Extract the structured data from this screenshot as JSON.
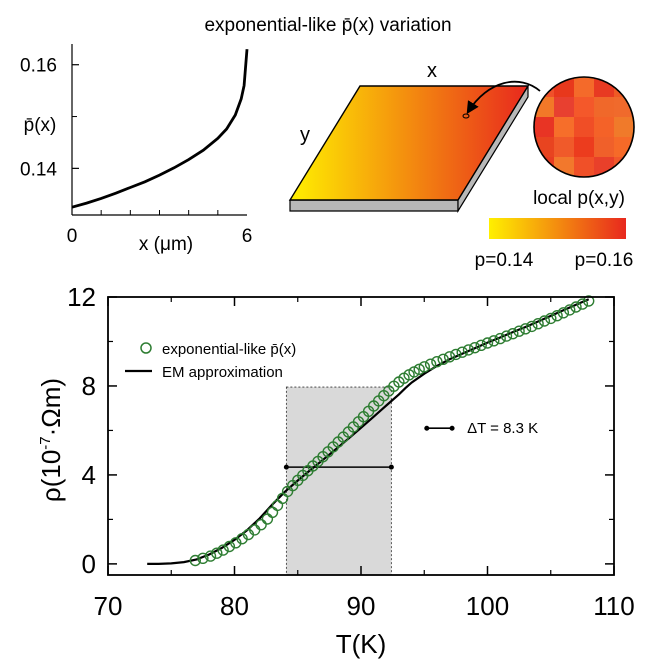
{
  "top_title": "exponential-like p̄(x) variation",
  "schematic": {
    "x_label": "x",
    "y_label": "y",
    "local_label": "local p(x,y)",
    "colorbar_min_label": "p=0.14",
    "colorbar_max_label": "p=0.16",
    "colors": {
      "low": "#fff000",
      "high": "#e8281e",
      "slab_side": "#b8b8b8",
      "inset_cells": [
        "#f0502a",
        "#e8381c",
        "#f46a2a",
        "#e83a22",
        "#f05a24",
        "#f27828",
        "#e84030",
        "#f4582a",
        "#f0682a",
        "#f06a2c",
        "#e83424",
        "#f66e2a",
        "#f04e26",
        "#f46228",
        "#f07a2a",
        "#e84420",
        "#f05a2a",
        "#ec3c1e",
        "#f0602a",
        "#f66a28",
        "#e83c22",
        "#f2782c",
        "#f05028",
        "#e9402a",
        "#f2582a"
      ]
    }
  },
  "chart_data": [
    {
      "id": "inset",
      "type": "line",
      "title": "exponential-like p̄(x) variation",
      "xlabel": "x (μm)",
      "ylabel": "p̄(x)",
      "xlim": [
        0,
        6
      ],
      "ylim": [
        0.131,
        0.164
      ],
      "xticks": [
        0,
        6
      ],
      "xtick_labels": [
        "0",
        "6"
      ],
      "yticks": [
        0.14,
        0.16
      ],
      "ytick_labels": [
        "0.14",
        "0.16"
      ],
      "grid": false,
      "series": [
        {
          "x": [
            0,
            0.5,
            1.0,
            1.5,
            2.0,
            2.5,
            3.0,
            3.5,
            4.0,
            4.5,
            5.0,
            5.3,
            5.6,
            5.8,
            5.9,
            6.0
          ],
          "y": [
            0.1325,
            0.1333,
            0.1342,
            0.1352,
            0.1363,
            0.1374,
            0.1387,
            0.1401,
            0.1417,
            0.1435,
            0.1458,
            0.1476,
            0.1503,
            0.1534,
            0.156,
            0.163
          ]
        }
      ]
    },
    {
      "id": "main",
      "type": "line",
      "xlabel": "T(K)",
      "ylabel": "ρ(10⁻⁷·Ωm)",
      "xlim": [
        70,
        110
      ],
      "ylim": [
        -0.5,
        12
      ],
      "xticks": [
        70,
        80,
        90,
        100,
        110
      ],
      "xtick_labels": [
        "70",
        "80",
        "90",
        "100",
        "110"
      ],
      "yticks": [
        0,
        4,
        8,
        12
      ],
      "ytick_labels": [
        "0",
        "4",
        "8",
        "12"
      ],
      "grid": false,
      "legend": {
        "position": "top-left",
        "entries": [
          {
            "label": "exponential-like p̄(x)",
            "marker": "open-circle",
            "color": "#2e7d32"
          },
          {
            "label": "EM approximation",
            "marker": "line",
            "color": "#000000"
          }
        ]
      },
      "shaded_band": {
        "x_from": 84.1,
        "x_to": 92.4,
        "color": "#d9d9d9"
      },
      "width_marker": {
        "x_from": 84.1,
        "x_to": 92.4,
        "y": 4.35
      },
      "annotation": {
        "text": "ΔT = 8.3 K",
        "marker_x": [
          95.2,
          97.2
        ],
        "marker_y": 6.1
      },
      "series": [
        {
          "name": "exponential-like p̄(x)",
          "style": "markers",
          "color": "#2e7d32",
          "x": [
            76.9,
            77.5,
            78.1,
            78.6,
            79.1,
            79.6,
            80.1,
            80.6,
            81.1,
            81.6,
            82.1,
            82.6,
            83.0,
            83.4,
            83.8,
            84.2,
            84.6,
            85.0,
            85.4,
            85.8,
            86.2,
            86.6,
            87.0,
            87.4,
            87.8,
            88.2,
            88.6,
            89.0,
            89.4,
            89.8,
            90.2,
            90.6,
            91.0,
            91.4,
            91.8,
            92.2,
            92.6,
            93.0,
            93.4,
            93.8,
            94.2,
            94.6,
            95.0,
            95.5,
            96.0,
            96.5,
            97.0,
            97.5,
            98.0,
            98.5,
            99.0,
            99.5,
            100.0,
            100.5,
            101.0,
            101.5,
            102.0,
            102.5,
            103.0,
            103.5,
            104.0,
            104.5,
            105.0,
            105.5,
            106.0,
            106.5,
            107.0,
            107.5,
            108.0
          ],
          "y": [
            0.15,
            0.25,
            0.35,
            0.48,
            0.62,
            0.78,
            0.95,
            1.13,
            1.32,
            1.53,
            1.76,
            2.02,
            2.32,
            2.63,
            2.95,
            3.26,
            3.52,
            3.76,
            3.98,
            4.19,
            4.4,
            4.61,
            4.82,
            5.04,
            5.26,
            5.48,
            5.7,
            5.93,
            6.16,
            6.39,
            6.62,
            6.86,
            7.1,
            7.33,
            7.56,
            7.78,
            7.99,
            8.18,
            8.35,
            8.5,
            8.63,
            8.75,
            8.86,
            8.98,
            9.09,
            9.2,
            9.31,
            9.42,
            9.52,
            9.62,
            9.72,
            9.83,
            9.93,
            10.03,
            10.13,
            10.24,
            10.35,
            10.46,
            10.57,
            10.68,
            10.8,
            10.92,
            11.04,
            11.16,
            11.29,
            11.42,
            11.55,
            11.68,
            11.82
          ]
        },
        {
          "name": "EM approximation",
          "style": "line",
          "color": "#000000",
          "x": [
            73.1,
            74.0,
            75.0,
            76.0,
            77.0,
            78.0,
            79.0,
            80.0,
            81.0,
            82.0,
            83.0,
            84.0,
            85.0,
            86.0,
            87.0,
            88.0,
            89.0,
            90.0,
            91.0,
            92.0,
            93.0,
            93.5,
            94.0,
            95.0,
            96.0,
            97.0,
            98.0,
            99.0,
            100.0,
            101.0,
            102.0,
            103.0,
            104.0,
            105.0,
            106.0,
            107.0,
            108.0
          ],
          "y": [
            0.0,
            0.0,
            0.02,
            0.08,
            0.2,
            0.42,
            0.72,
            1.08,
            1.52,
            2.05,
            2.68,
            3.25,
            3.75,
            4.22,
            4.68,
            5.15,
            5.63,
            6.12,
            6.62,
            7.12,
            7.62,
            7.9,
            8.15,
            8.55,
            8.9,
            9.2,
            9.45,
            9.7,
            9.95,
            10.18,
            10.42,
            10.65,
            10.9,
            11.15,
            11.4,
            11.65,
            11.9
          ]
        }
      ]
    }
  ]
}
